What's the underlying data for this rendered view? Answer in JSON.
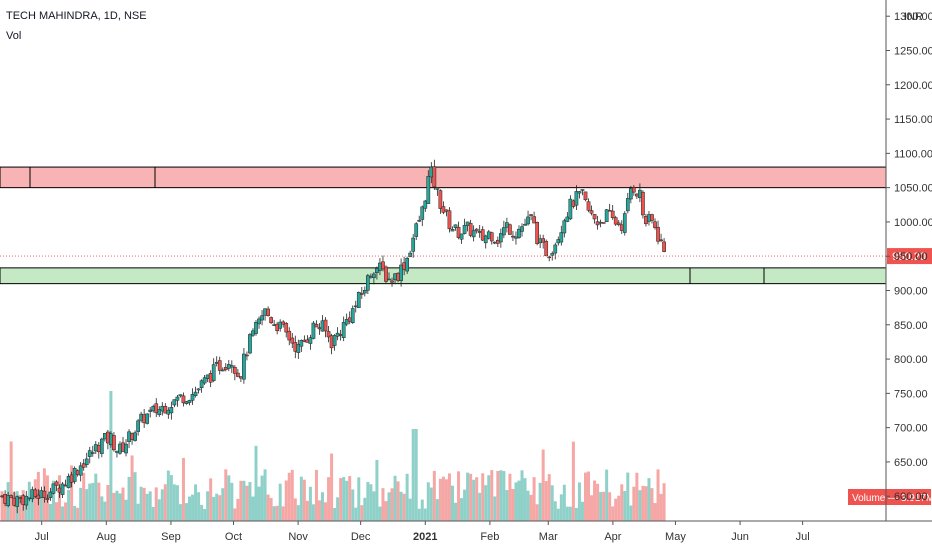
{
  "header": {
    "title": "TECH MAHINDRA, 1D, NSE",
    "indicator": "Vol"
  },
  "colors": {
    "up": "#26a69a",
    "down": "#ef5350",
    "vol_up": "#8fd1c9",
    "vol_down": "#f5a7a5",
    "resistance_fill": "#f8b4b4",
    "support_fill": "#c5e8c5",
    "price_tag": "#ef5350"
  },
  "chart_data": {
    "type": "candlestick",
    "title": "TECH MAHINDRA, 1D, NSE",
    "currency": "INR",
    "ylim": [
      560,
      1320
    ],
    "y_ticks": [
      "1300.00",
      "1250.00",
      "1200.00",
      "1150.00",
      "1100.00",
      "1050.00",
      "1000.00",
      "950.00",
      "900.00",
      "850.00",
      "800.00",
      "750.00",
      "700.00",
      "650.00",
      "600.00"
    ],
    "x_ticks": [
      {
        "label": "Jul",
        "bold": false,
        "day": 1
      },
      {
        "label": "Aug",
        "bold": false,
        "day": 32
      },
      {
        "label": "Sep",
        "bold": false,
        "day": 63
      },
      {
        "label": "Oct",
        "bold": false,
        "day": 93
      },
      {
        "label": "Nov",
        "bold": false,
        "day": 124
      },
      {
        "label": "Dec",
        "bold": false,
        "day": 154
      },
      {
        "label": "2021",
        "bold": true,
        "day": 185
      },
      {
        "label": "Feb",
        "bold": false,
        "day": 216
      },
      {
        "label": "Mar",
        "bold": false,
        "day": 244
      },
      {
        "label": "Apr",
        "bold": false,
        "day": 275
      },
      {
        "label": "May",
        "bold": false,
        "day": 305
      },
      {
        "label": "Jun",
        "bold": false,
        "day": 336
      },
      {
        "label": "Jul",
        "bold": false,
        "day": 366
      }
    ],
    "x_domain_days": [
      -19,
      406
    ],
    "series": [
      {
        "name": "Price",
        "closes": [
          [
            -18,
            600
          ],
          [
            -12,
            595
          ],
          [
            -6,
            598
          ],
          [
            0,
            602
          ],
          [
            6,
            608
          ],
          [
            12,
            620
          ],
          [
            18,
            640
          ],
          [
            24,
            660
          ],
          [
            30,
            680
          ],
          [
            34,
            685
          ],
          [
            38,
            665
          ],
          [
            44,
            690
          ],
          [
            50,
            715
          ],
          [
            56,
            725
          ],
          [
            62,
            735
          ],
          [
            68,
            745
          ],
          [
            74,
            750
          ],
          [
            80,
            770
          ],
          [
            86,
            790
          ],
          [
            92,
            800
          ],
          [
            96,
            775
          ],
          [
            100,
            820
          ],
          [
            104,
            845
          ],
          [
            108,
            870
          ],
          [
            112,
            855
          ],
          [
            116,
            845
          ],
          [
            120,
            830
          ],
          [
            124,
            815
          ],
          [
            128,
            830
          ],
          [
            132,
            850
          ],
          [
            136,
            845
          ],
          [
            140,
            825
          ],
          [
            144,
            840
          ],
          [
            148,
            860
          ],
          [
            152,
            880
          ],
          [
            156,
            905
          ],
          [
            160,
            935
          ],
          [
            164,
            930
          ],
          [
            168,
            915
          ],
          [
            172,
            925
          ],
          [
            176,
            945
          ],
          [
            180,
            985
          ],
          [
            184,
            1020
          ],
          [
            186,
            1060
          ],
          [
            188,
            1070
          ],
          [
            192,
            1030
          ],
          [
            196,
            1000
          ],
          [
            200,
            985
          ],
          [
            206,
            990
          ],
          [
            212,
            975
          ],
          [
            216,
            985
          ],
          [
            220,
            975
          ],
          [
            224,
            995
          ],
          [
            228,
            985
          ],
          [
            232,
            995
          ],
          [
            236,
            1005
          ],
          [
            240,
            965
          ],
          [
            244,
            955
          ],
          [
            248,
            975
          ],
          [
            252,
            1010
          ],
          [
            256,
            1030
          ],
          [
            260,
            1040
          ],
          [
            264,
            1010
          ],
          [
            268,
            1000
          ],
          [
            272,
            1010
          ],
          [
            276,
            1000
          ],
          [
            280,
            995
          ],
          [
            284,
            1055
          ],
          [
            288,
            1040
          ],
          [
            290,
            1000
          ],
          [
            294,
            1000
          ],
          [
            298,
            970
          ],
          [
            300,
            950
          ]
        ]
      },
      {
        "name": "Volume",
        "last_value": "3.917M"
      }
    ],
    "last_price": "950.20",
    "resistance_zone": [
      1050,
      1080
    ],
    "support_zone": [
      910,
      933
    ],
    "volume_label": "Volume",
    "volume_value": "3.917M"
  }
}
